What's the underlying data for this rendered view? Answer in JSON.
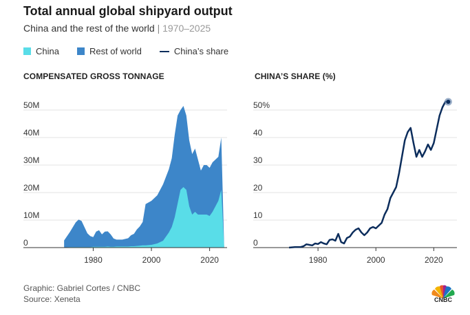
{
  "header": {
    "title": "Total annual global shipyard output",
    "subtitle_main": "China and the rest of the world",
    "subtitle_sep": "|",
    "subtitle_range": "1970–2025"
  },
  "legend": {
    "china": "China",
    "rest": "Rest of world",
    "share": "China’s share"
  },
  "colors": {
    "china": "#59dde8",
    "rest": "#3d86c9",
    "share": "#0c2d5c",
    "axis": "#333333"
  },
  "chart_data": [
    {
      "type": "area",
      "title": "COMPENSATED GROSS TONNAGE",
      "x": [
        1970,
        1972,
        1974,
        1975,
        1976,
        1978,
        1979,
        1980,
        1981,
        1982,
        1983,
        1984,
        1985,
        1986,
        1987,
        1988,
        1990,
        1992,
        1993,
        1994,
        1995,
        1996,
        1997,
        1998,
        2000,
        2002,
        2004,
        2006,
        2007,
        2008,
        2009,
        2010,
        2011,
        2012,
        2013,
        2014,
        2015,
        2016,
        2017,
        2018,
        2019,
        2020,
        2021,
        2022,
        2023,
        2024,
        2025
      ],
      "series": [
        {
          "name": "China",
          "values": [
            0.1,
            0.2,
            0.2,
            0.2,
            0.2,
            0.2,
            0.2,
            0.3,
            0.3,
            0.3,
            0.3,
            0.3,
            0.4,
            0.3,
            0.3,
            0.4,
            0.4,
            0.4,
            0.5,
            0.5,
            0.6,
            0.7,
            0.8,
            0.8,
            1.0,
            1.5,
            2.5,
            5.5,
            7.5,
            11,
            16,
            21,
            22,
            21,
            15,
            12,
            13,
            12,
            12,
            12,
            12,
            11.5,
            13,
            15,
            17,
            21,
            0
          ]
        },
        {
          "name": "Rest of world",
          "values": [
            2.5,
            5.5,
            9.0,
            10.0,
            9.5,
            5.0,
            4.0,
            3.5,
            5.5,
            6.0,
            4.5,
            5.5,
            5.5,
            4.5,
            3.0,
            2.5,
            2.5,
            3.0,
            4.0,
            4.5,
            6.0,
            7.0,
            8.5,
            15.0,
            16.0,
            17.5,
            20.5,
            23.0,
            25.0,
            30.0,
            32.0,
            29.0,
            29.5,
            27.0,
            24.0,
            22.0,
            23.0,
            20.0,
            16.0,
            18.0,
            18.0,
            17.5,
            18.0,
            17.0,
            16.0,
            19.0,
            0
          ]
        }
      ],
      "xlim": [
        1965,
        2026
      ],
      "ylim": [
        0,
        55
      ],
      "xticks": [
        "1980",
        "2000",
        "2020"
      ],
      "yticks": [
        "50M",
        "40M",
        "30M",
        "20M",
        "10M",
        "0"
      ]
    },
    {
      "type": "line",
      "title": "CHINA’S SHARE (%)",
      "x": [
        1970,
        1972,
        1974,
        1975,
        1976,
        1977,
        1978,
        1979,
        1980,
        1981,
        1982,
        1983,
        1984,
        1985,
        1986,
        1987,
        1988,
        1989,
        1990,
        1991,
        1992,
        1993,
        1994,
        1995,
        1996,
        1997,
        1998,
        1999,
        2000,
        2001,
        2002,
        2003,
        2004,
        2005,
        2006,
        2007,
        2008,
        2009,
        2010,
        2011,
        2012,
        2013,
        2014,
        2015,
        2016,
        2017,
        2018,
        2019,
        2020,
        2021,
        2022,
        2023,
        2024,
        2025
      ],
      "series": [
        {
          "name": "China’s share",
          "values": [
            0,
            0.2,
            0.2,
            0.5,
            1.2,
            1.0,
            0.8,
            1.5,
            1.3,
            2.0,
            1.5,
            1.2,
            2.8,
            3.0,
            2.5,
            5.0,
            2.0,
            1.5,
            3.5,
            4.0,
            5.5,
            6.5,
            7.0,
            5.5,
            4.5,
            5.5,
            7.0,
            7.5,
            7.0,
            8.0,
            9.0,
            12.0,
            14.0,
            18.0,
            20.0,
            22.0,
            27.0,
            33.0,
            39.0,
            42.0,
            43.5,
            38.0,
            33.0,
            35.5,
            33.0,
            35.0,
            37.5,
            35.5,
            38.0,
            43.0,
            48.0,
            51.0,
            53.0,
            53.0
          ]
        }
      ],
      "xlim": [
        1960,
        2028
      ],
      "ylim": [
        0,
        55
      ],
      "xticks": [
        "1980",
        "2000",
        "2020"
      ],
      "yticks": [
        "50%",
        "40",
        "30",
        "20",
        "10",
        "0"
      ]
    }
  ],
  "footer": {
    "graphic": "Graphic: Gabriel Cortes / CNBC",
    "source": "Source: Xeneta",
    "logo_text": "CNBC"
  }
}
